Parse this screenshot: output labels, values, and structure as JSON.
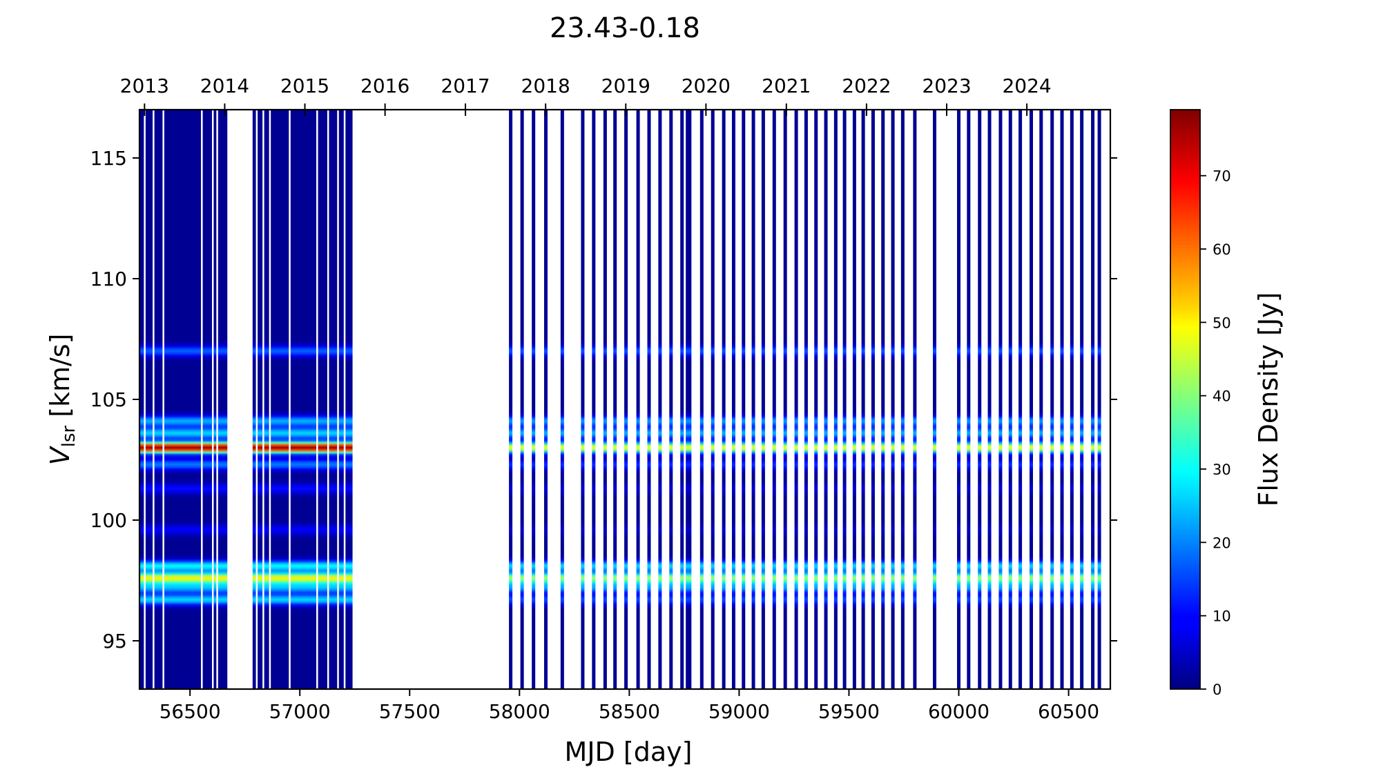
{
  "chart_data": {
    "type": "heatmap",
    "title": "23.43-0.18",
    "xlabel": "MJD [day]",
    "ylabel_main": "V",
    "ylabel_sub": "lsr",
    "ylabel_unit": " [km/s]",
    "xlim": [
      56270,
      60690
    ],
    "ylim": [
      93.0,
      117.0
    ],
    "x_ticks": [
      56500,
      57000,
      57500,
      58000,
      58500,
      59000,
      59500,
      60000,
      60500
    ],
    "y_ticks": [
      95,
      100,
      105,
      110,
      115
    ],
    "top_axis": {
      "labels": [
        "2013",
        "2014",
        "2015",
        "2016",
        "2017",
        "2018",
        "2019",
        "2020",
        "2021",
        "2022",
        "2023",
        "2024"
      ],
      "mjd": [
        56293,
        56658,
        57023,
        57388,
        57754,
        58119,
        58484,
        58849,
        59215,
        59580,
        59945,
        60310
      ]
    },
    "colorbar": {
      "label": "Flux Density [Jy]",
      "colormap": "jet",
      "range": [
        0,
        79
      ],
      "ticks": [
        0,
        10,
        20,
        30,
        40,
        50,
        60,
        70
      ]
    },
    "observing_blocks": [
      {
        "start": 56270,
        "end": 56670,
        "gaps": [
          56290,
          56330,
          56375,
          56550,
          56600,
          56620
        ]
      },
      {
        "start": 56785,
        "end": 57240,
        "gaps": [
          56800,
          56830,
          56860,
          56950,
          57075,
          57125,
          57170,
          57200
        ]
      }
    ],
    "observing_dates": [
      57960,
      58012,
      58064,
      58120,
      58195,
      58288,
      58338,
      58390,
      58435,
      58485,
      58540,
      58590,
      58640,
      58690,
      58740,
      58765,
      58775,
      58830,
      58880,
      58930,
      58975,
      59020,
      59065,
      59110,
      59160,
      59210,
      59260,
      59305,
      59350,
      59395,
      59440,
      59480,
      59525,
      59565,
      59610,
      59655,
      59700,
      59745,
      59800,
      59890,
      60000,
      60045,
      60095,
      60140,
      60190,
      60235,
      60280,
      60330,
      60375,
      60425,
      60470,
      60515,
      60560,
      60610,
      60640
    ],
    "spectral_features": [
      {
        "v": 103.0,
        "peak_early": 76,
        "peak_late": 47
      },
      {
        "v": 103.6,
        "peak_early": 25,
        "peak_late": 22
      },
      {
        "v": 102.3,
        "peak_early": 18,
        "peak_late": 12
      },
      {
        "v": 104.1,
        "peak_early": 22,
        "peak_late": 20
      },
      {
        "v": 97.6,
        "peak_early": 48,
        "peak_late": 40
      },
      {
        "v": 98.1,
        "peak_early": 28,
        "peak_late": 25
      },
      {
        "v": 97.2,
        "peak_early": 22,
        "peak_late": 20
      },
      {
        "v": 96.7,
        "peak_early": 25,
        "peak_late": 14
      },
      {
        "v": 107.0,
        "peak_early": 16,
        "peak_late": 15
      },
      {
        "v": 99.6,
        "peak_early": 8,
        "peak_late": 4
      },
      {
        "v": 101.3,
        "peak_early": 9,
        "peak_late": 5
      }
    ]
  }
}
